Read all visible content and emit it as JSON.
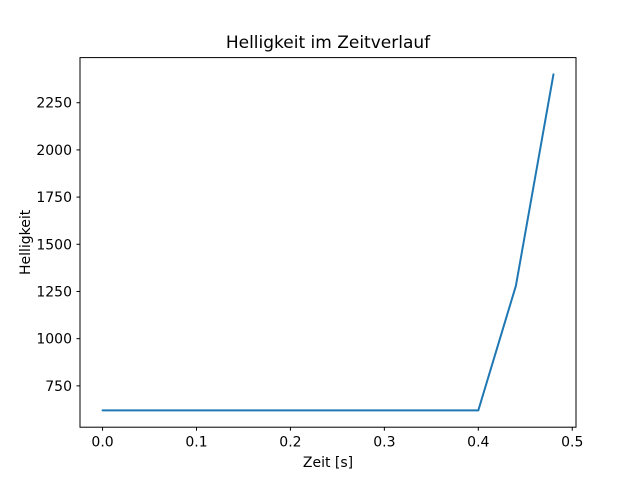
{
  "figure": {
    "background": "#ffffff"
  },
  "chart_data": {
    "type": "line",
    "title": "Helligkeit im Zeitverlauf",
    "xlabel": "Zeit [s]",
    "ylabel": "Helligkeit",
    "x": [
      0.0,
      0.04,
      0.08,
      0.12,
      0.16,
      0.2,
      0.24,
      0.28,
      0.32,
      0.36,
      0.4,
      0.44,
      0.48
    ],
    "y": [
      620,
      620,
      620,
      620,
      620,
      620,
      620,
      620,
      620,
      620,
      620,
      1280,
      2400
    ],
    "line_color": "#1f77b4",
    "line_width": 2,
    "xlim": [
      -0.024,
      0.504
    ],
    "ylim": [
      531,
      2489
    ],
    "xticks": [
      0.0,
      0.1,
      0.2,
      0.3,
      0.4,
      0.5
    ],
    "xtick_labels": [
      "0.0",
      "0.1",
      "0.2",
      "0.3",
      "0.4",
      "0.5"
    ],
    "yticks": [
      750,
      1000,
      1250,
      1500,
      1750,
      2000,
      2250
    ],
    "ytick_labels": [
      "750",
      "1000",
      "1250",
      "1500",
      "1750",
      "2000",
      "2250"
    ],
    "grid": false,
    "legend_position": "none",
    "markers": false
  }
}
